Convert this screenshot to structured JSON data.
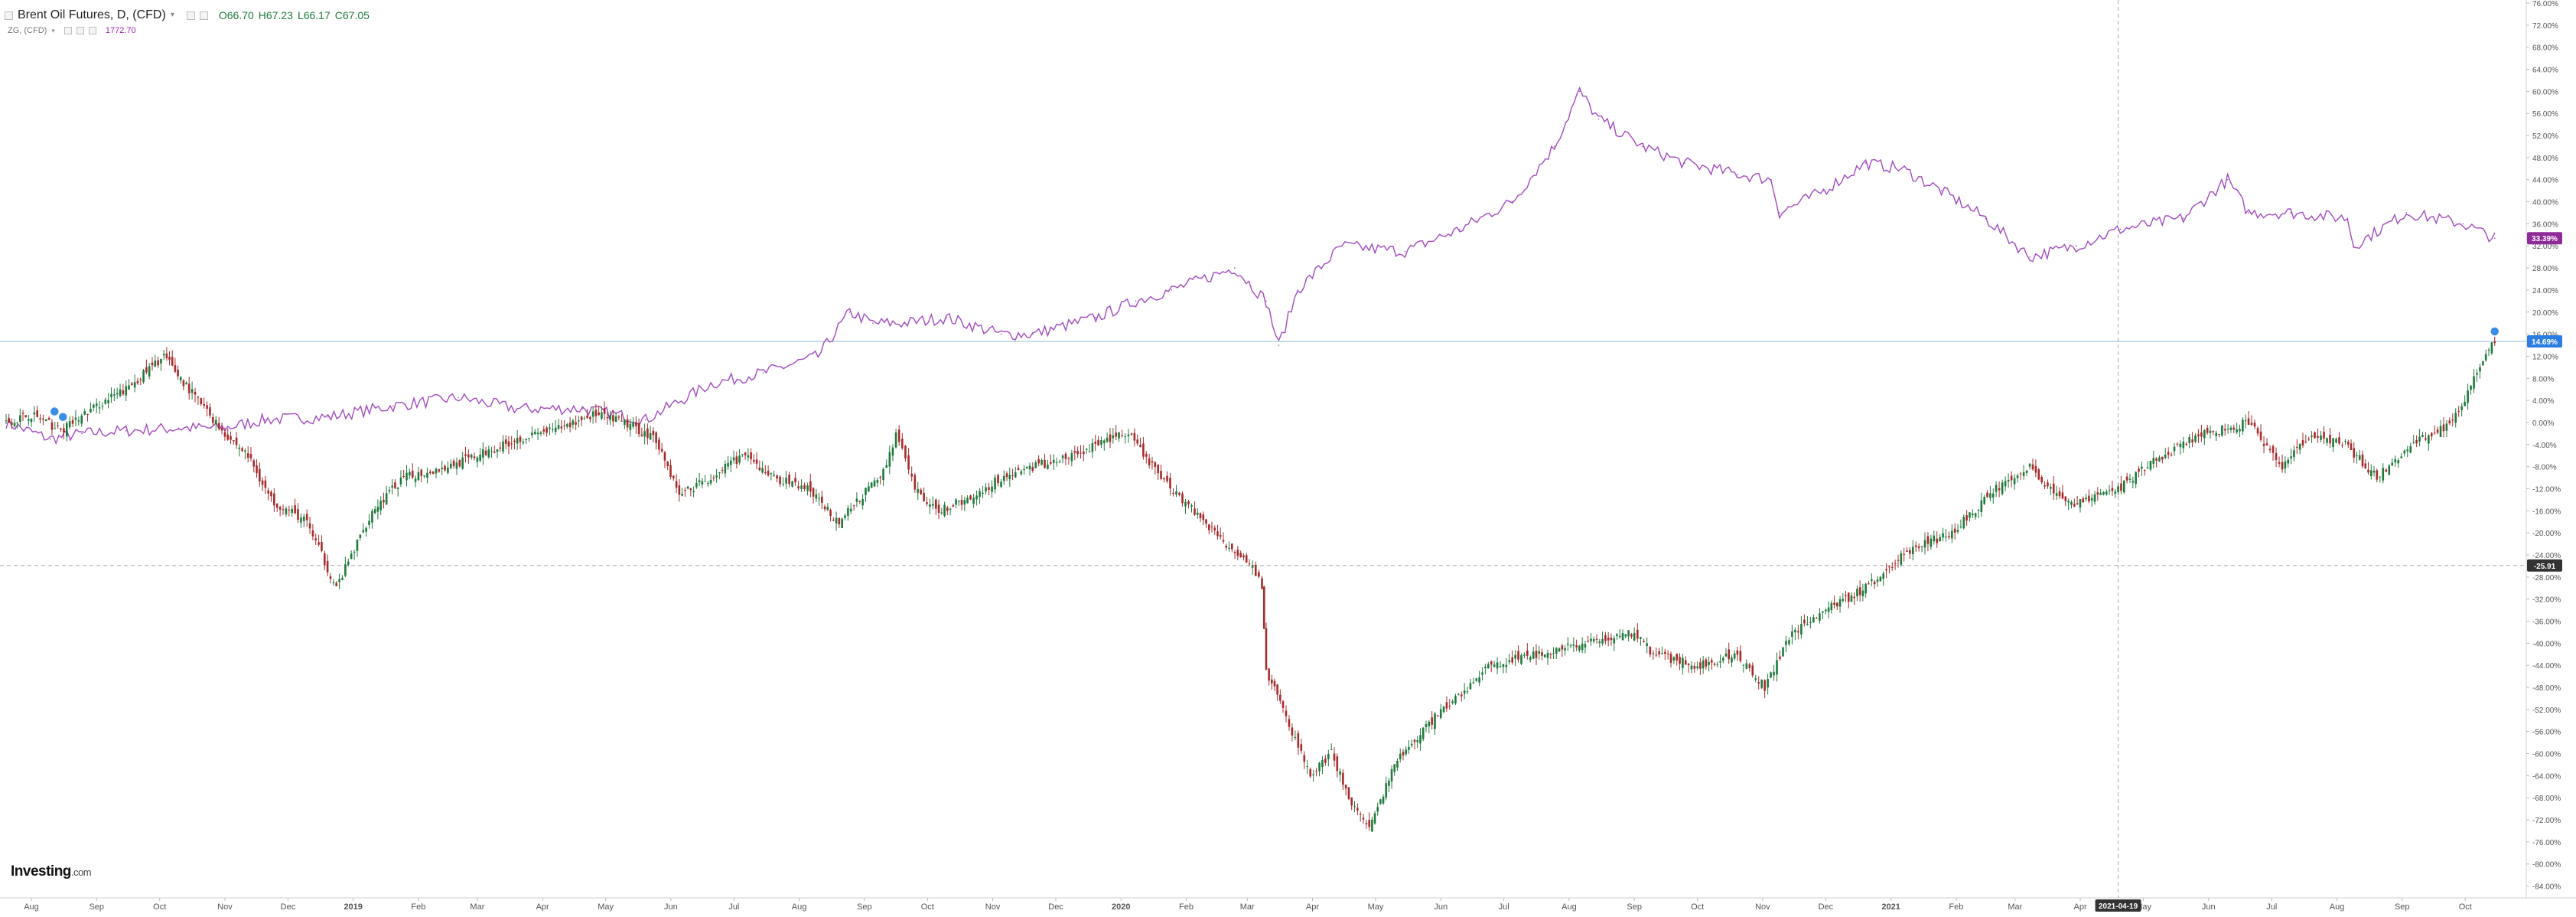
{
  "legend": {
    "main_title": "Brent Oil Futures, D, (CFD)",
    "open": "O66.70",
    "high": "H67.23",
    "low": "L66.17",
    "close": "C67.05",
    "overlay_title": "ZG, (CFD)",
    "overlay_value": "1772.70"
  },
  "logo": {
    "brand": "Investing",
    "suffix": ".com"
  },
  "colors": {
    "up": "#1f7a3c",
    "down": "#a62b2b",
    "overlay_line": "#a24bbf",
    "baseline": "#9ec5d8",
    "last_badge_main": "#2a7de1",
    "last_badge_overlay": "#8e2b99",
    "crosshair_badge": "#333333"
  },
  "badges": {
    "main_last": "14.69%",
    "overlay_last": "33.39%",
    "crosshair_y": "-25.91",
    "crosshair_x": "2021-04-19"
  },
  "chart_data": {
    "type": "line",
    "y_unit": "percent change",
    "ylim": [
      -86,
      76
    ],
    "y_ticks": [
      "76.00%",
      "72.00%",
      "68.00%",
      "64.00%",
      "60.00%",
      "56.00%",
      "52.00%",
      "48.00%",
      "44.00%",
      "40.00%",
      "36.00%",
      "32.00%",
      "28.00%",
      "24.00%",
      "20.00%",
      "16.00%",
      "12.00%",
      "8.00%",
      "4.00%",
      "0.00%",
      "-4.00%",
      "-8.00%",
      "-12.00%",
      "-16.00%",
      "-20.00%",
      "-24.00%",
      "-28.00%",
      "-32.00%",
      "-36.00%",
      "-40.00%",
      "-44.00%",
      "-48.00%",
      "-52.00%",
      "-56.00%",
      "-60.00%",
      "-64.00%",
      "-68.00%",
      "-72.00%",
      "-76.00%",
      "-80.00%",
      "-84.00%"
    ],
    "x_ticks": [
      "Aug",
      "Sep",
      "Oct",
      "Nov",
      "Dec",
      "2019",
      "Feb",
      "Mar",
      "Apr",
      "May",
      "Jun",
      "Jul",
      "Aug",
      "Sep",
      "Oct",
      "Nov",
      "Dec",
      "2020",
      "Feb",
      "Mar",
      "Apr",
      "May",
      "Jun",
      "Jul",
      "Aug",
      "Sep",
      "Oct",
      "Nov",
      "Dec",
      "2021",
      "Feb",
      "Mar",
      "Apr",
      "May",
      "Jun",
      "Jul",
      "Aug",
      "Sep",
      "Oct"
    ],
    "x_tick_bold": [
      "2019",
      "2020",
      "2021"
    ],
    "grid": false,
    "series": [
      {
        "name": "Brent Oil Futures, D, (CFD)",
        "style": "candlestick",
        "x": [
          "2018-07-20",
          "2018-08-01",
          "2018-08-15",
          "2018-09-01",
          "2018-09-15",
          "2018-10-03",
          "2018-10-15",
          "2018-11-01",
          "2018-11-12",
          "2018-11-23",
          "2018-12-10",
          "2018-12-24",
          "2019-01-10",
          "2019-01-25",
          "2019-02-15",
          "2019-03-01",
          "2019-03-20",
          "2019-04-10",
          "2019-04-25",
          "2019-05-10",
          "2019-05-25",
          "2019-06-05",
          "2019-06-20",
          "2019-07-05",
          "2019-07-20",
          "2019-08-05",
          "2019-08-20",
          "2019-09-10",
          "2019-09-16",
          "2019-09-25",
          "2019-10-05",
          "2019-10-20",
          "2019-11-05",
          "2019-11-20",
          "2019-12-10",
          "2019-12-31",
          "2020-01-06",
          "2020-01-20",
          "2020-02-05",
          "2020-02-20",
          "2020-03-02",
          "2020-03-08",
          "2020-03-10",
          "2020-03-18",
          "2020-03-31",
          "2020-04-10",
          "2020-04-21",
          "2020-04-28",
          "2020-05-10",
          "2020-05-25",
          "2020-06-08",
          "2020-06-25",
          "2020-07-15",
          "2020-08-10",
          "2020-09-01",
          "2020-09-10",
          "2020-10-01",
          "2020-10-20",
          "2020-11-02",
          "2020-11-15",
          "2020-12-01",
          "2020-12-20",
          "2021-01-10",
          "2021-01-30",
          "2021-02-20",
          "2021-03-08",
          "2021-03-25",
          "2021-04-19",
          "2021-05-10",
          "2021-05-30",
          "2021-06-20",
          "2021-07-06",
          "2021-07-20",
          "2021-08-05",
          "2021-08-20",
          "2021-09-05",
          "2021-09-25",
          "2021-10-08",
          "2021-10-15"
        ],
        "y": [
          0.0,
          1.5,
          -1.5,
          3.0,
          6.0,
          12.0,
          6.0,
          -2.0,
          -6.0,
          -14.0,
          -18.0,
          -30.0,
          -16.0,
          -10.0,
          -8.0,
          -6.0,
          -3.0,
          -1.0,
          1.5,
          0.0,
          -3.0,
          -13.0,
          -10.0,
          -6.0,
          -10.0,
          -12.0,
          -18.0,
          -9.0,
          -2.0,
          -12.0,
          -16.0,
          -14.0,
          -10.0,
          -8.0,
          -6.0,
          -2.0,
          -3.0,
          -10.0,
          -16.0,
          -22.0,
          -25.0,
          -30.0,
          -45.0,
          -52.0,
          -64.0,
          -60.0,
          -70.0,
          -74.0,
          -62.0,
          -55.0,
          -50.0,
          -44.0,
          -42.0,
          -40.0,
          -38.0,
          -42.0,
          -44.0,
          -42.0,
          -48.0,
          -38.0,
          -34.0,
          -30.0,
          -23.0,
          -20.0,
          -12.0,
          -8.0,
          -15.0,
          -12.0,
          -6.0,
          -2.0,
          0.0,
          -8.0,
          -2.0,
          -4.0,
          -10.0,
          -4.0,
          0.0,
          10.0,
          14.69
        ]
      },
      {
        "name": "ZG, (CFD)",
        "style": "line",
        "x": [
          "2018-07-20",
          "2018-08-10",
          "2018-08-25",
          "2018-09-15",
          "2018-10-10",
          "2018-11-01",
          "2018-11-20",
          "2018-12-20",
          "2019-01-20",
          "2019-02-20",
          "2019-03-20",
          "2019-04-20",
          "2019-05-20",
          "2019-06-20",
          "2019-07-15",
          "2019-08-10",
          "2019-08-25",
          "2019-09-05",
          "2019-09-20",
          "2019-10-10",
          "2019-11-05",
          "2019-11-20",
          "2019-12-20",
          "2020-01-08",
          "2020-01-25",
          "2020-02-24",
          "2020-03-10",
          "2020-03-16",
          "2020-03-25",
          "2020-04-15",
          "2020-05-15",
          "2020-06-10",
          "2020-07-05",
          "2020-07-25",
          "2020-08-06",
          "2020-08-15",
          "2020-09-05",
          "2020-09-25",
          "2020-10-20",
          "2020-11-05",
          "2020-11-09",
          "2020-11-30",
          "2020-12-20",
          "2021-01-06",
          "2021-01-25",
          "2021-02-15",
          "2021-03-08",
          "2021-03-30",
          "2021-04-20",
          "2021-05-20",
          "2021-06-10",
          "2021-06-20",
          "2021-07-10",
          "2021-08-06",
          "2021-08-09",
          "2021-09-03",
          "2021-09-30",
          "2021-10-15"
        ],
        "y": [
          0.0,
          -3.0,
          -2.0,
          -1.5,
          -1.0,
          -1.0,
          0.5,
          1.0,
          3.0,
          4.5,
          2.5,
          2.5,
          0.5,
          7.0,
          9.0,
          12.0,
          20.0,
          18.0,
          18.0,
          19.0,
          16.0,
          16.0,
          19.0,
          22.0,
          24.0,
          28.0,
          22.0,
          14.0,
          24.0,
          32.0,
          31.0,
          35.0,
          40.0,
          50.0,
          60.0,
          55.0,
          50.0,
          47.0,
          45.0,
          44.0,
          38.0,
          42.0,
          47.0,
          46.0,
          42.0,
          37.0,
          30.0,
          32.0,
          35.0,
          37.0,
          44.0,
          38.0,
          38.0,
          37.0,
          32.0,
          38.0,
          36.0,
          33.39
        ]
      }
    ]
  }
}
